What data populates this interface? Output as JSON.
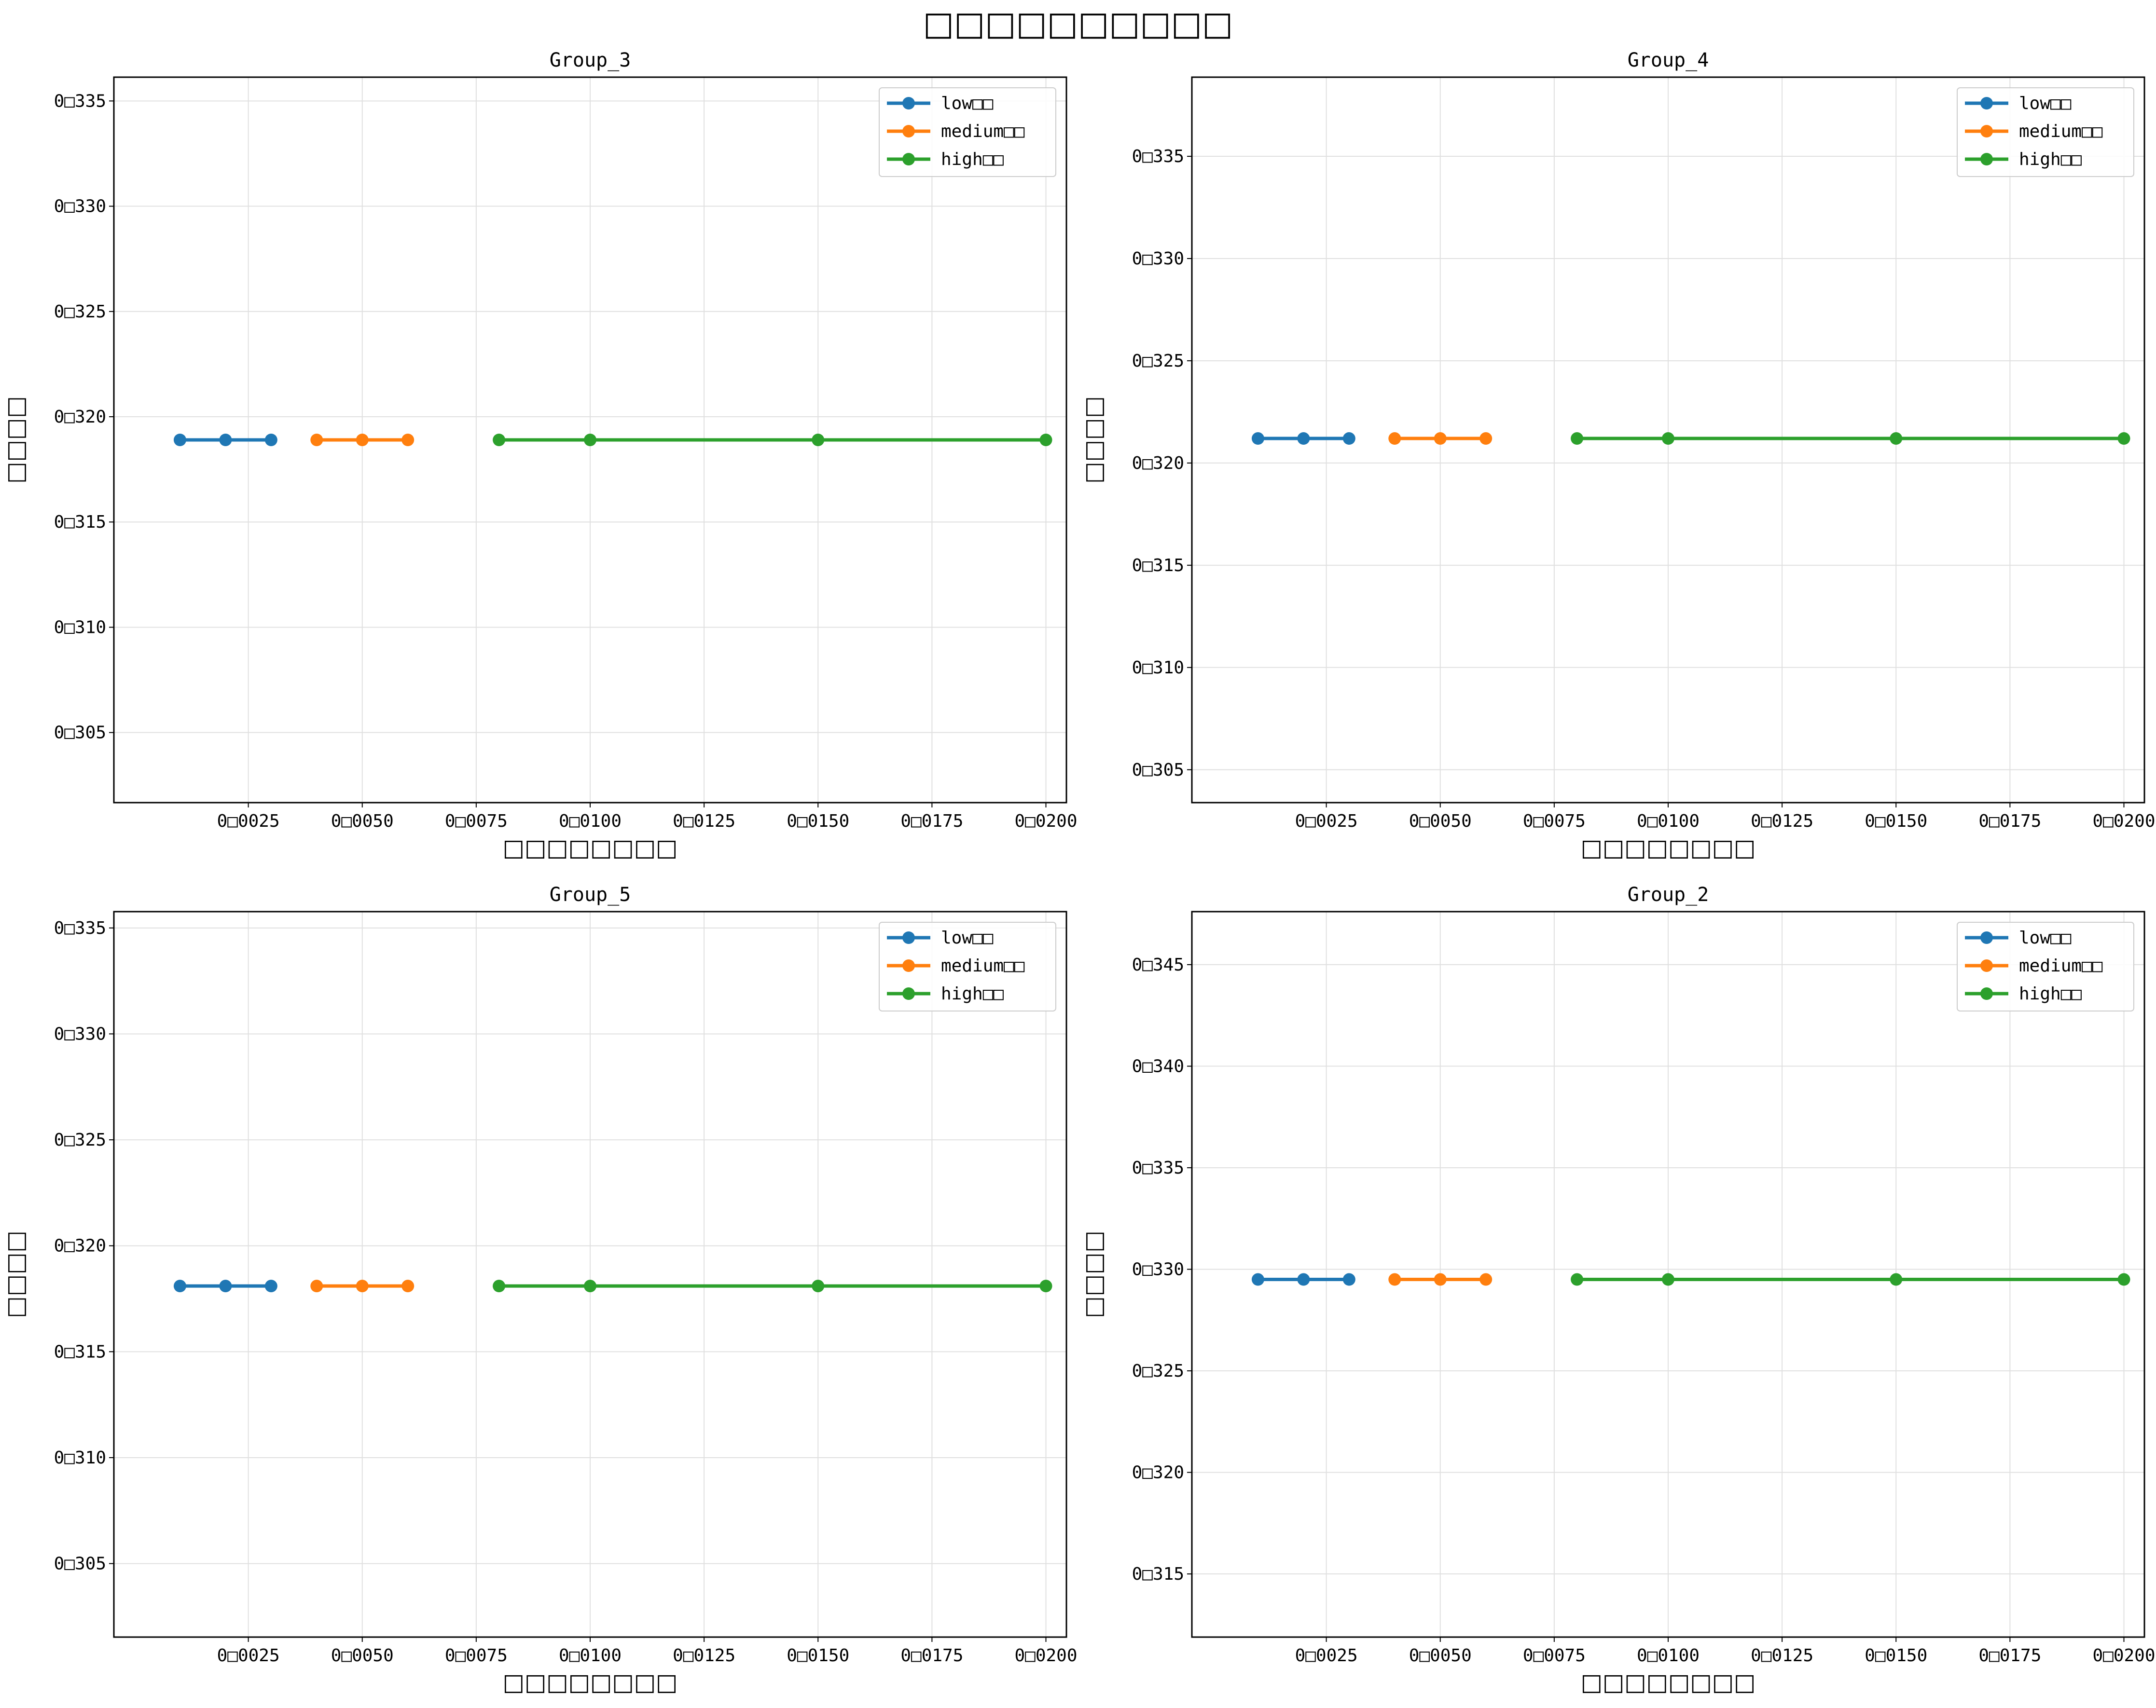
{
  "figure": {
    "title": "□□□□□□□□□□"
  },
  "colors": {
    "low": "#1f77b4",
    "medium": "#ff7f0e",
    "high": "#2ca02c",
    "grid": "#e0e0e0",
    "frame": "#000000"
  },
  "chart_data": [
    {
      "type": "line",
      "title": "Group_3",
      "xlabel": "□□□□□□□□",
      "ylabel": "□□□□",
      "xlim": [
        -0.00045,
        0.02045
      ],
      "ylim": [
        0.30167,
        0.33613
      ],
      "xticks": [
        0.0025,
        0.005,
        0.0075,
        0.01,
        0.0125,
        0.015,
        0.0175,
        0.02
      ],
      "xtick_labels": [
        "0□0025",
        "0□0050",
        "0□0075",
        "0□0100",
        "0□0125",
        "0□0150",
        "0□0175",
        "0□0200"
      ],
      "yticks": [
        0.305,
        0.31,
        0.315,
        0.32,
        0.325,
        0.33,
        0.335
      ],
      "ytick_labels": [
        "0□305",
        "0□310",
        "0□315",
        "0□320",
        "0□325",
        "0□330",
        "0□335"
      ],
      "grid": true,
      "legend_position": "top-right",
      "series": [
        {
          "name": "low□□",
          "color": "#1f77b4",
          "x": [
            0.001,
            0.002,
            0.003
          ],
          "y": [
            0.3189,
            0.3189,
            0.3189
          ]
        },
        {
          "name": "medium□□",
          "color": "#ff7f0e",
          "x": [
            0.004,
            0.005,
            0.006
          ],
          "y": [
            0.3189,
            0.3189,
            0.3189
          ]
        },
        {
          "name": "high□□",
          "color": "#2ca02c",
          "x": [
            0.008,
            0.01,
            0.015,
            0.02
          ],
          "y": [
            0.3189,
            0.3189,
            0.3189,
            0.3189
          ]
        }
      ]
    },
    {
      "type": "line",
      "title": "Group_4",
      "xlabel": "□□□□□□□□",
      "ylabel": "□□□□",
      "xlim": [
        -0.00045,
        0.02045
      ],
      "ylim": [
        0.30339,
        0.33887
      ],
      "xticks": [
        0.0025,
        0.005,
        0.0075,
        0.01,
        0.0125,
        0.015,
        0.0175,
        0.02
      ],
      "xtick_labels": [
        "0□0025",
        "0□0050",
        "0□0075",
        "0□0100",
        "0□0125",
        "0□0150",
        "0□0175",
        "0□0200"
      ],
      "yticks": [
        0.305,
        0.31,
        0.315,
        0.32,
        0.325,
        0.33,
        0.335
      ],
      "ytick_labels": [
        "0□305",
        "0□310",
        "0□315",
        "0□320",
        "0□325",
        "0□330",
        "0□335"
      ],
      "grid": true,
      "legend_position": "top-right",
      "series": [
        {
          "name": "low□□",
          "color": "#1f77b4",
          "x": [
            0.001,
            0.002,
            0.003
          ],
          "y": [
            0.3212,
            0.3212,
            0.3212
          ]
        },
        {
          "name": "medium□□",
          "color": "#ff7f0e",
          "x": [
            0.004,
            0.005,
            0.006
          ],
          "y": [
            0.3212,
            0.3212,
            0.3212
          ]
        },
        {
          "name": "high□□",
          "color": "#2ca02c",
          "x": [
            0.008,
            0.01,
            0.015,
            0.02
          ],
          "y": [
            0.3212,
            0.3212,
            0.3212,
            0.3212
          ]
        }
      ]
    },
    {
      "type": "line",
      "title": "Group_5",
      "xlabel": "□□□□□□□□",
      "ylabel": "□□□□",
      "xlim": [
        -0.00045,
        0.02045
      ],
      "ylim": [
        0.30153,
        0.33577
      ],
      "xticks": [
        0.0025,
        0.005,
        0.0075,
        0.01,
        0.0125,
        0.015,
        0.0175,
        0.02
      ],
      "xtick_labels": [
        "0□0025",
        "0□0050",
        "0□0075",
        "0□0100",
        "0□0125",
        "0□0150",
        "0□0175",
        "0□0200"
      ],
      "yticks": [
        0.305,
        0.31,
        0.315,
        0.32,
        0.325,
        0.33,
        0.335
      ],
      "ytick_labels": [
        "0□305",
        "0□310",
        "0□315",
        "0□320",
        "0□325",
        "0□330",
        "0□335"
      ],
      "grid": true,
      "legend_position": "top-right",
      "series": [
        {
          "name": "low□□",
          "color": "#1f77b4",
          "x": [
            0.001,
            0.002,
            0.003
          ],
          "y": [
            0.3181,
            0.3181,
            0.3181
          ]
        },
        {
          "name": "medium□□",
          "color": "#ff7f0e",
          "x": [
            0.004,
            0.005,
            0.006
          ],
          "y": [
            0.3181,
            0.3181,
            0.3181
          ]
        },
        {
          "name": "high□□",
          "color": "#2ca02c",
          "x": [
            0.008,
            0.01,
            0.015,
            0.02
          ],
          "y": [
            0.3181,
            0.3181,
            0.3181,
            0.3181
          ]
        }
      ]
    },
    {
      "type": "line",
      "title": "Group_2",
      "xlabel": "□□□□□□□□",
      "ylabel": "□□□□",
      "xlim": [
        -0.00045,
        0.02045
      ],
      "ylim": [
        0.31189,
        0.34761
      ],
      "xticks": [
        0.0025,
        0.005,
        0.0075,
        0.01,
        0.0125,
        0.015,
        0.0175,
        0.02
      ],
      "xtick_labels": [
        "0□0025",
        "0□0050",
        "0□0075",
        "0□0100",
        "0□0125",
        "0□0150",
        "0□0175",
        "0□0200"
      ],
      "yticks": [
        0.315,
        0.32,
        0.325,
        0.33,
        0.335,
        0.34,
        0.345
      ],
      "ytick_labels": [
        "0□315",
        "0□320",
        "0□325",
        "0□330",
        "0□335",
        "0□340",
        "0□345"
      ],
      "grid": true,
      "legend_position": "top-right",
      "series": [
        {
          "name": "low□□",
          "color": "#1f77b4",
          "x": [
            0.001,
            0.002,
            0.003
          ],
          "y": [
            0.3295,
            0.3295,
            0.3295
          ]
        },
        {
          "name": "medium□□",
          "color": "#ff7f0e",
          "x": [
            0.004,
            0.005,
            0.006
          ],
          "y": [
            0.3295,
            0.3295,
            0.3295
          ]
        },
        {
          "name": "high□□",
          "color": "#2ca02c",
          "x": [
            0.008,
            0.01,
            0.015,
            0.02
          ],
          "y": [
            0.3295,
            0.3295,
            0.3295,
            0.3295
          ]
        }
      ]
    }
  ]
}
